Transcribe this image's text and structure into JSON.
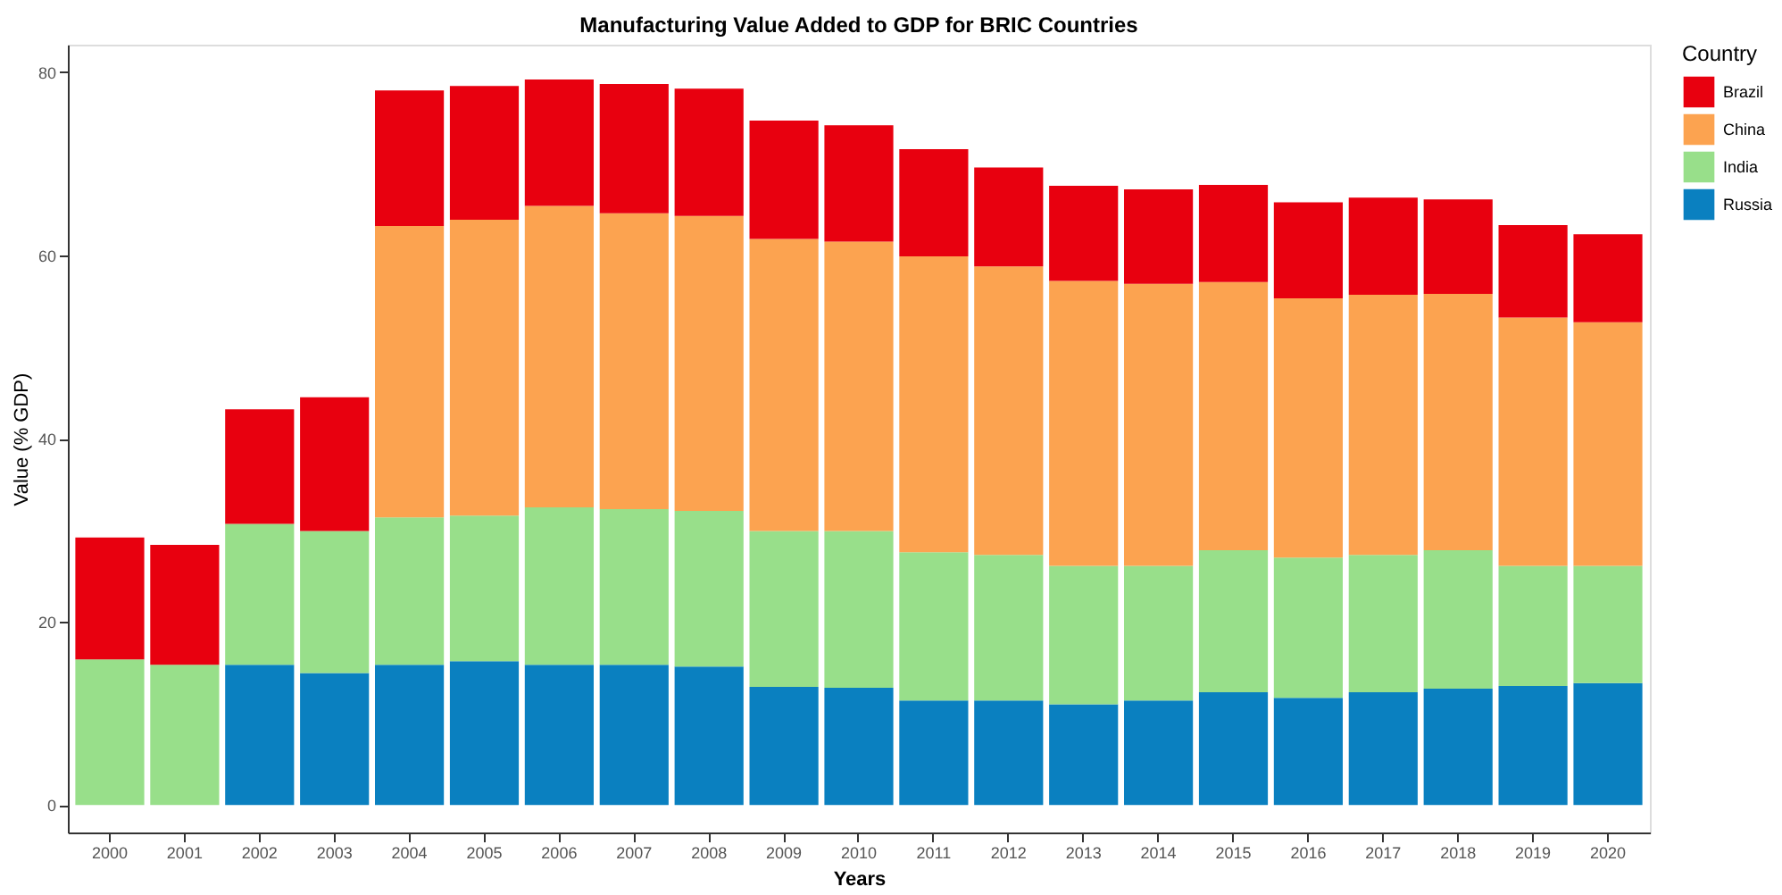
{
  "chart_data": {
    "type": "bar",
    "stacked": true,
    "title": "Manufacturing Value Added to GDP for BRIC Countries",
    "xlabel": "Years",
    "ylabel": "Value (% GDP)",
    "legend_title": "Country",
    "legend": "right",
    "grid": false,
    "categories": [
      "2000",
      "2001",
      "2002",
      "2003",
      "2004",
      "2005",
      "2006",
      "2007",
      "2008",
      "2009",
      "2010",
      "2011",
      "2012",
      "2013",
      "2014",
      "2015",
      "2016",
      "2017",
      "2018",
      "2019",
      "2020"
    ],
    "ylim": [
      -3,
      83
    ],
    "yticks": [
      0,
      20,
      40,
      60,
      80
    ],
    "series": [
      {
        "name": "Russia",
        "color": "#0a80c0",
        "values": [
          null,
          null,
          15.3,
          14.4,
          15.3,
          15.7,
          15.3,
          15.3,
          15.1,
          12.9,
          12.8,
          11.4,
          11.4,
          11.0,
          11.4,
          12.3,
          11.7,
          12.3,
          12.7,
          13.0,
          13.3
        ]
      },
      {
        "name": "India",
        "color": "#98df8a",
        "values": [
          15.9,
          15.3,
          15.4,
          15.5,
          16.1,
          15.9,
          17.2,
          17.0,
          17.0,
          17.0,
          17.1,
          16.2,
          15.9,
          15.1,
          14.7,
          15.5,
          15.3,
          15.0,
          15.1,
          13.1,
          12.8
        ]
      },
      {
        "name": "China",
        "color": "#fca350",
        "values": [
          null,
          null,
          null,
          null,
          31.8,
          32.3,
          32.9,
          32.3,
          32.2,
          31.9,
          31.6,
          32.3,
          31.5,
          31.1,
          30.8,
          29.3,
          28.3,
          28.4,
          28.0,
          27.1,
          26.6
        ]
      },
      {
        "name": "Brazil",
        "color": "#e8000f",
        "values": [
          13.3,
          13.1,
          12.5,
          14.6,
          14.8,
          14.6,
          13.8,
          14.1,
          13.9,
          12.9,
          12.7,
          11.7,
          10.8,
          10.4,
          10.3,
          10.6,
          10.5,
          10.6,
          10.3,
          10.1,
          9.6
        ]
      }
    ]
  }
}
